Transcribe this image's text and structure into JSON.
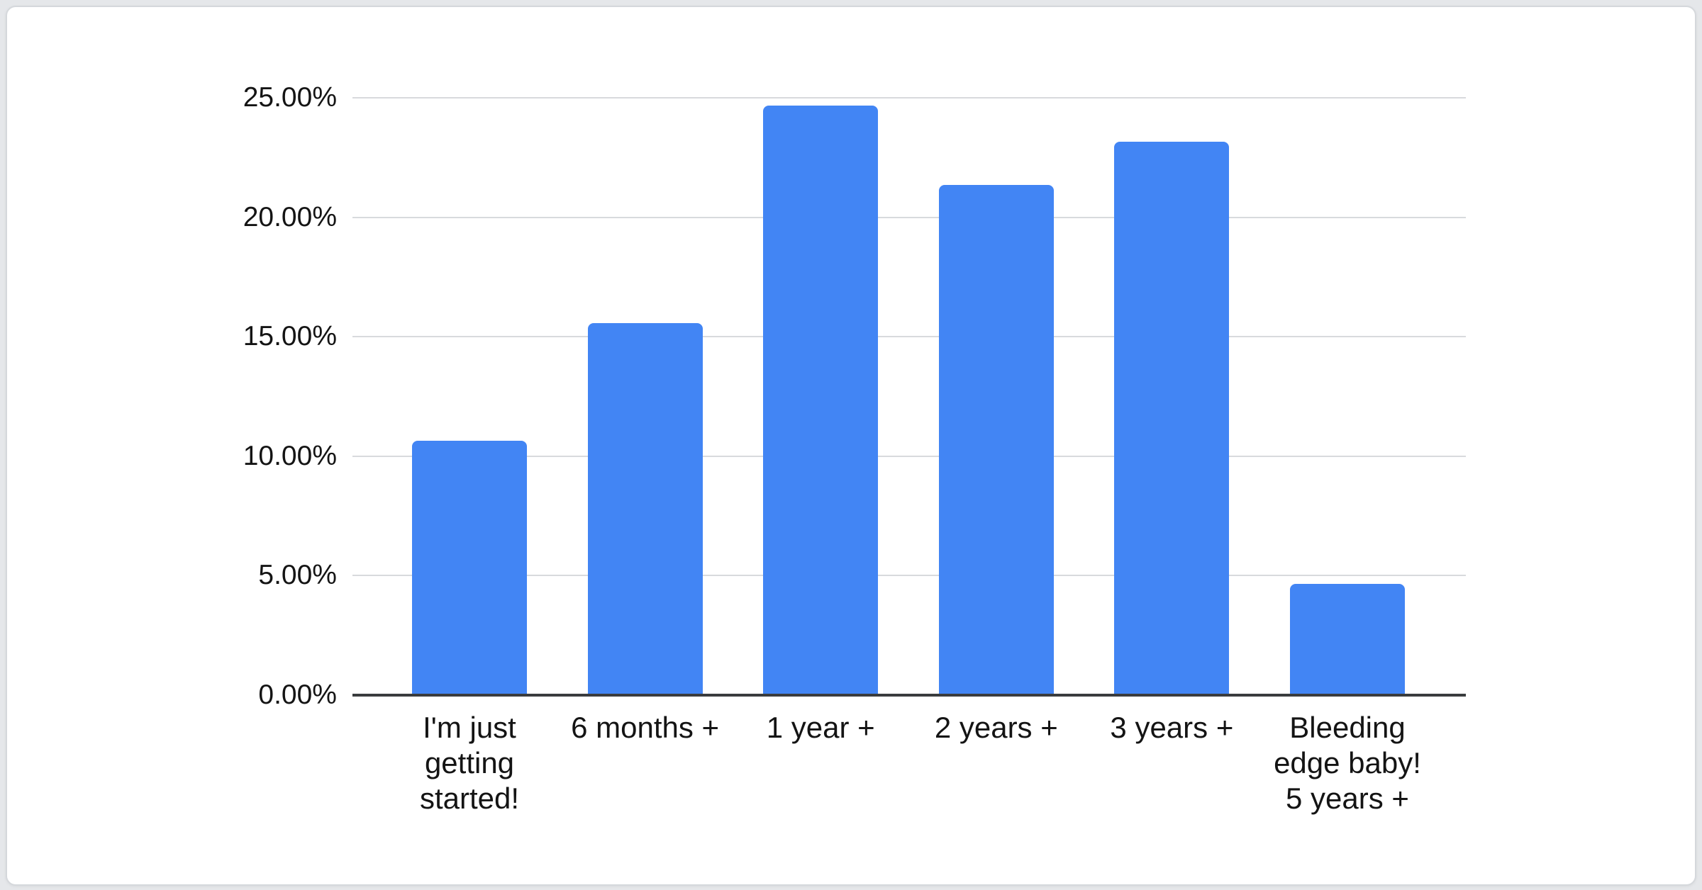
{
  "page": {
    "background_color": "#e5e7ea",
    "card": {
      "background_color": "#ffffff",
      "border_color": "#d5d8dc"
    }
  },
  "chart_data": {
    "type": "bar",
    "title": "",
    "xlabel": "",
    "ylabel": "",
    "legend": "none",
    "grid": true,
    "categories": [
      "I'm just\ngetting\nstarted!",
      "6 months +",
      "1 year +",
      "2 years +",
      "3 years +",
      "Bleeding\nedge baby!\n5 years +"
    ],
    "values": [
      10.6,
      15.5,
      24.6,
      21.3,
      23.1,
      4.6
    ],
    "value_unit": "%",
    "ylim": [
      0,
      25
    ],
    "yticks": [
      {
        "value": 25,
        "label": "25.00%"
      },
      {
        "value": 20,
        "label": "20.00%"
      },
      {
        "value": 15,
        "label": "15.00%"
      },
      {
        "value": 10,
        "label": "10.00%"
      },
      {
        "value": 5,
        "label": "5.00%"
      },
      {
        "value": 0,
        "label": "0.00%"
      }
    ],
    "colors": {
      "bar": "#4285F4",
      "gridline": "#d8dadd",
      "axis_line": "#3a3c3e",
      "tick_text": "#141414"
    }
  }
}
